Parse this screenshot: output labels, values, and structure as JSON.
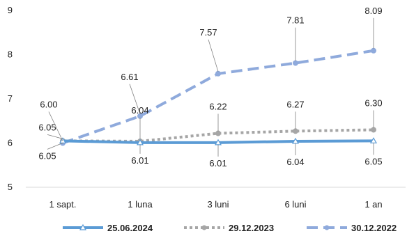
{
  "chart_data": {
    "type": "line",
    "categories": [
      "1 sapt.",
      "1 luna",
      "3 luni",
      "6 luni",
      "1 an"
    ],
    "ylim": [
      5,
      9
    ],
    "yticks": [
      5,
      6,
      7,
      8,
      9
    ],
    "grid": false,
    "legend_position": "bottom",
    "series": [
      {
        "name": "25.06.2024",
        "values": [
          6.05,
          6.01,
          6.01,
          6.04,
          6.05
        ],
        "color": "#5b9bd5",
        "style": "solid",
        "marker": "triangle",
        "label_position": "below"
      },
      {
        "name": "29.12.2023",
        "values": [
          6.05,
          6.04,
          6.22,
          6.27,
          6.3
        ],
        "color": "#a6a6a6",
        "style": "dotted",
        "marker": "circle",
        "label_position": "above"
      },
      {
        "name": "30.12.2022",
        "values": [
          6.0,
          6.61,
          7.57,
          7.81,
          8.09
        ],
        "color": "#8faadc",
        "style": "dashed",
        "marker": "circle",
        "label_position": "above"
      }
    ]
  }
}
